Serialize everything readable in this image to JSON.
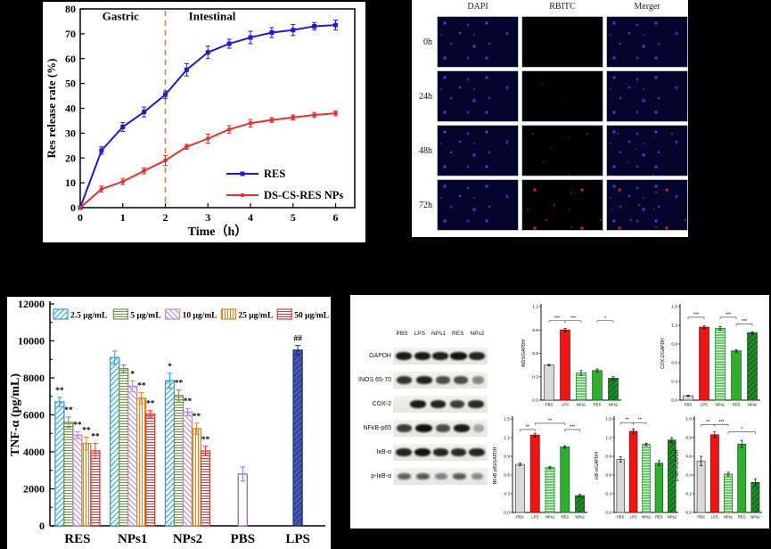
{
  "page": {
    "background": "#000000"
  },
  "microscopy": {
    "columns": [
      "DAPI",
      "RBITC",
      "Merger"
    ],
    "rows": [
      "0h",
      "24h",
      "48h",
      "72h"
    ]
  },
  "western": {
    "lanes": [
      "PBS",
      "LPS",
      "NPs1",
      "RES",
      "NPs2"
    ],
    "rows": [
      {
        "label": "GAPDH",
        "bands": [
          0.9,
          0.9,
          0.88,
          0.95,
          0.85
        ]
      },
      {
        "label": "INOS 65-70",
        "bands": [
          0.75,
          0.85,
          0.6,
          0.6,
          0.25
        ]
      },
      {
        "label": "COX-2",
        "bands": [
          0,
          0.9,
          0.85,
          0.7,
          0.8
        ]
      },
      {
        "label": "NFκB-p65",
        "bands": [
          0.7,
          0.95,
          0.6,
          0.9,
          0.08
        ]
      },
      {
        "label": "IκB-α",
        "bands": [
          0.85,
          0.95,
          0.85,
          0.8,
          0.85
        ]
      },
      {
        "label": "p-IκB-α",
        "bands": [
          0.5,
          0.55,
          0.3,
          0.55,
          0.25
        ]
      }
    ]
  },
  "mini_styles": [
    {
      "fill": "#d9d9d9",
      "stroke": "#555555"
    },
    {
      "fill": "#ee1515",
      "stroke": "#8a0505"
    },
    {
      "fill": "#5cd65c",
      "stroke": "#1f7a1f",
      "hatch": "horiz",
      "hatch_color": "#ffffff"
    },
    {
      "fill": "#2fae2f",
      "stroke": "#15651a"
    },
    {
      "fill": "#1f8a26",
      "stroke": "#0b4d12",
      "hatch": "diag",
      "hatch_color": "#0f5c17"
    }
  ],
  "chart_data": [
    {
      "id": "release",
      "type": "line",
      "title": "",
      "xlabel": "Time（h）",
      "ylabel": "Res release rate (%)",
      "xlim": [
        0,
        6.45
      ],
      "ylim": [
        0,
        80
      ],
      "xticks": [
        0,
        1,
        2,
        3,
        4,
        5,
        6
      ],
      "yticks": [
        0,
        10,
        20,
        30,
        40,
        50,
        60,
        70,
        80
      ],
      "x": [
        0,
        0.5,
        1,
        1.5,
        2,
        2.5,
        3,
        3.5,
        4,
        4.5,
        5,
        5.5,
        6
      ],
      "series": [
        {
          "name": "RES",
          "color": "#1b1bd6",
          "marker": "square",
          "values": [
            0,
            23,
            32.5,
            38.5,
            45.5,
            55.5,
            62.5,
            66,
            68.5,
            70.5,
            71.5,
            73,
            73.5
          ],
          "err": [
            0,
            1.5,
            1.8,
            2,
            1.5,
            2.5,
            2.5,
            1.8,
            2.5,
            2,
            2.2,
            1.5,
            2
          ]
        },
        {
          "name": "DS-CS-RES NPs",
          "color": "#ee2b2b",
          "marker": "circle",
          "values": [
            0,
            7.5,
            10.5,
            14.8,
            19,
            24.5,
            27.8,
            31.5,
            34,
            35.3,
            36.3,
            37.3,
            38
          ],
          "err": [
            0,
            1.2,
            1.3,
            1.2,
            2,
            1,
            1.8,
            1.5,
            1.5,
            1,
            1,
            1,
            1
          ]
        }
      ],
      "annotations": [
        {
          "text": "Gastric",
          "x": 0.95,
          "y": 75.5
        },
        {
          "text": "Intestinal",
          "x": 3.1,
          "y": 75.5
        }
      ],
      "vline": {
        "x": 2,
        "color": "#e08020",
        "style": "dashed"
      },
      "legend_position": "inside-right"
    },
    {
      "id": "tnf",
      "type": "grouped-bar",
      "title": "",
      "xlabel": "",
      "ylabel": "TNF-α (pg/mL)",
      "ylim": [
        0,
        12000
      ],
      "yticks": [
        0,
        2000,
        4000,
        6000,
        8000,
        10000,
        12000
      ],
      "legend": [
        "2.5 μg/mL",
        "5 μg/mL",
        "10 μg/mL",
        "25 μg/mL",
        "50 μg/mL"
      ],
      "legend_styles": [
        "s25",
        "s5",
        "s10",
        "s25u",
        "s50"
      ],
      "styles": {
        "s25": {
          "line": "#2e9fd4",
          "bg": "#ffffff",
          "hatch": "diag"
        },
        "s5": {
          "line": "#6f9a3c",
          "bg": "#ffffff",
          "hatch": "horiz"
        },
        "s10": {
          "line": "#bd7fe8",
          "bg": "#ffffff",
          "hatch": "diag2"
        },
        "s25u": {
          "line": "#e0821e",
          "bg": "#ffffff",
          "hatch": "vert"
        },
        "s50": {
          "line": "#e83030",
          "bg": "#ffffff",
          "hatch": "horiz"
        },
        "pbs": {
          "line": "#a05fe0",
          "bg": "#ffffff",
          "hatch": "none"
        },
        "lps": {
          "line": "#1b2a70",
          "bg": "#31459e",
          "hatch": "diag",
          "hatch_line": "#5a6fc0"
        }
      },
      "groups": [
        {
          "label": "RES",
          "bars": [
            {
              "style": "s25",
              "v": 6700,
              "e": 250,
              "sig": "**"
            },
            {
              "style": "s5",
              "v": 5600,
              "e": 280,
              "sig": "**"
            },
            {
              "style": "s10",
              "v": 4900,
              "e": 180,
              "sig": "**"
            },
            {
              "style": "s25u",
              "v": 4450,
              "e": 350,
              "sig": "**"
            },
            {
              "style": "s50",
              "v": 4050,
              "e": 400,
              "sig": "**"
            }
          ]
        },
        {
          "label": "NPs1",
          "bars": [
            {
              "style": "s25",
              "v": 9100,
              "e": 350,
              "sig": ""
            },
            {
              "style": "s5",
              "v": 8500,
              "e": 200,
              "sig": ""
            },
            {
              "style": "s10",
              "v": 7550,
              "e": 280,
              "sig": "*"
            },
            {
              "style": "s25u",
              "v": 6900,
              "e": 300,
              "sig": "**"
            },
            {
              "style": "s50",
              "v": 6050,
              "e": 180,
              "sig": "**"
            }
          ]
        },
        {
          "label": "NPs2",
          "bars": [
            {
              "style": "s25",
              "v": 7850,
              "e": 400,
              "sig": "*"
            },
            {
              "style": "s5",
              "v": 7050,
              "e": 300,
              "sig": "**"
            },
            {
              "style": "s10",
              "v": 6150,
              "e": 200,
              "sig": "**"
            },
            {
              "style": "s25u",
              "v": 5250,
              "e": 300,
              "sig": "**"
            },
            {
              "style": "s50",
              "v": 4050,
              "e": 250,
              "sig": "**"
            }
          ]
        },
        {
          "label": "PBS",
          "bars": [
            {
              "style": "pbs",
              "v": 2800,
              "e": 380,
              "sig": ""
            }
          ]
        },
        {
          "label": "LPS",
          "bars": [
            {
              "style": "lps",
              "v": 9500,
              "e": 250,
              "sig": "##"
            }
          ]
        }
      ]
    },
    {
      "id": "inos",
      "type": "bar",
      "ylabel": "iNOS/GAPDH",
      "ylim": [
        0,
        1.2
      ],
      "yticks": [
        0,
        0.3,
        0.6,
        0.9,
        1.2
      ],
      "categories": [
        "PBS",
        "LPS",
        "NPs1",
        "RES",
        "NPs2"
      ],
      "values": [
        0.45,
        0.9,
        0.35,
        0.38,
        0.28
      ],
      "errors": [
        0.01,
        0.02,
        0.03,
        0.02,
        0.02
      ],
      "brackets": [
        [
          0,
          1,
          "***",
          1.02
        ],
        [
          1,
          2,
          "***",
          1.02
        ],
        [
          3,
          4,
          "*",
          1.02
        ]
      ]
    },
    {
      "id": "cox2",
      "type": "bar",
      "ylabel": "COX-2/GAPDH",
      "ylim": [
        0,
        1.5
      ],
      "yticks": [
        0,
        0.3,
        0.6,
        0.9,
        1.2,
        1.5
      ],
      "categories": [
        "PBS",
        "LPS",
        "NPs1",
        "RES",
        "NPs2"
      ],
      "values": [
        0.07,
        1.17,
        1.15,
        0.79,
        1.08
      ],
      "errors": [
        0.01,
        0.02,
        0.03,
        0.02,
        0.02
      ],
      "brackets": [
        [
          0,
          1,
          "***",
          1.33
        ],
        [
          2,
          3,
          "***",
          1.33
        ],
        [
          3,
          4,
          "***",
          1.22
        ]
      ]
    },
    {
      "id": "nfkb",
      "type": "bar",
      "ylabel": "NFκB p65/GAPDH",
      "ylim": [
        0,
        1.5
      ],
      "yticks": [
        0,
        0.3,
        0.6,
        0.9,
        1.2,
        1.5
      ],
      "categories": [
        "PBS",
        "LPS",
        "NPs1",
        "RES",
        "NPs2"
      ],
      "values": [
        0.77,
        1.24,
        0.72,
        1.05,
        0.27
      ],
      "errors": [
        0.02,
        0.03,
        0.02,
        0.02,
        0.02
      ],
      "brackets": [
        [
          0,
          1,
          "**",
          1.33
        ],
        [
          1,
          3,
          "**",
          1.43
        ],
        [
          3,
          4,
          "***",
          1.33
        ]
      ]
    },
    {
      "id": "ikb",
      "type": "bar",
      "ylabel": "IκB-α/GAPDH",
      "ylim": [
        0,
        1.5
      ],
      "yticks": [
        0,
        0.3,
        0.6,
        0.9,
        1.2,
        1.5
      ],
      "categories": [
        "PBS",
        "LPS",
        "NPs1",
        "RES",
        "NPs2"
      ],
      "values": [
        0.85,
        1.3,
        1.09,
        0.79,
        1.16
      ],
      "errors": [
        0.04,
        0.04,
        0.02,
        0.04,
        0.04
      ],
      "brackets": [
        [
          0,
          1,
          "**",
          1.44
        ],
        [
          1,
          2,
          "**",
          1.44
        ]
      ]
    },
    {
      "id": "pikb",
      "type": "bar",
      "ylabel": "p-IκB-α/GAPDH",
      "ylim": [
        0,
        1.0
      ],
      "yticks": [
        0,
        0.2,
        0.4,
        0.6,
        0.8,
        1.0
      ],
      "categories": [
        "PBS",
        "LPS",
        "NPs1",
        "RES",
        "NPs2"
      ],
      "values": [
        0.55,
        0.83,
        0.41,
        0.73,
        0.32
      ],
      "errors": [
        0.05,
        0.03,
        0.02,
        0.04,
        0.04
      ],
      "brackets": [
        [
          0,
          1,
          "**",
          0.94
        ],
        [
          1,
          2,
          "***",
          0.94
        ],
        [
          2,
          4,
          "*",
          0.86
        ]
      ]
    }
  ]
}
